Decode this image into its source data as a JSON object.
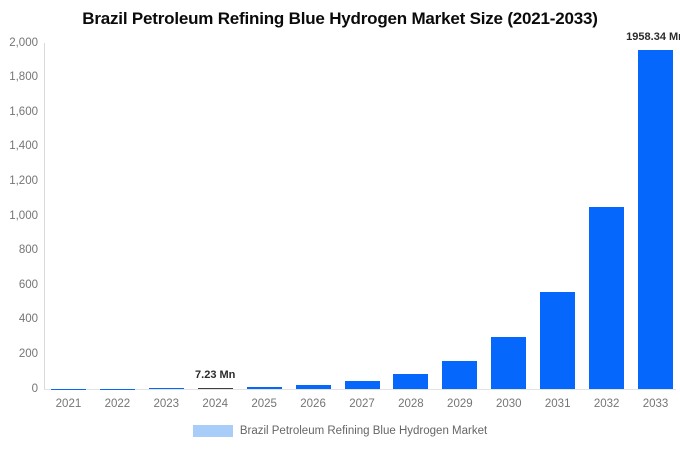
{
  "title": "Brazil Petroleum Refining Blue Hydrogen Market Size (2021-2033)",
  "legend": {
    "label": "Brazil Petroleum Refining Blue Hydrogen Market"
  },
  "colors": {
    "bar": "#0667fd",
    "highlight_bar": "#3f3f3f",
    "legend_swatch": "#a8cdf8",
    "axis_line": "#d9d9d9",
    "tick_text": "#757575",
    "value_label_text": "#2b2b2b"
  },
  "chart_data": {
    "type": "bar",
    "title": "Brazil Petroleum Refining Blue Hydrogen Market Size (2021-2033)",
    "categories": [
      "2021",
      "2022",
      "2023",
      "2024",
      "2025",
      "2026",
      "2027",
      "2028",
      "2029",
      "2030",
      "2031",
      "2032",
      "2033"
    ],
    "series": [
      {
        "name": "Brazil Petroleum Refining Blue Hydrogen Market",
        "values": [
          1.12,
          2.08,
          3.88,
          7.23,
          13.47,
          25.09,
          46.75,
          87.1,
          162.25,
          302.3,
          563.2,
          1049.3,
          1958.34
        ]
      }
    ],
    "unit": "Mn",
    "xlabel": "",
    "ylabel": "",
    "ylim": [
      0,
      2000
    ],
    "y_tick_step": 200,
    "y_tick_labels": [
      "0",
      "200",
      "400",
      "600",
      "800",
      "1,000",
      "1,200",
      "1,400",
      "1,600",
      "1,800",
      "2,000"
    ],
    "grid": false,
    "legend_position": "bottom",
    "highlight_index": 3,
    "annotations": [
      {
        "index": 3,
        "text": "7.23 Mn"
      },
      {
        "index": 12,
        "text": "1958.34 Mn"
      }
    ]
  }
}
